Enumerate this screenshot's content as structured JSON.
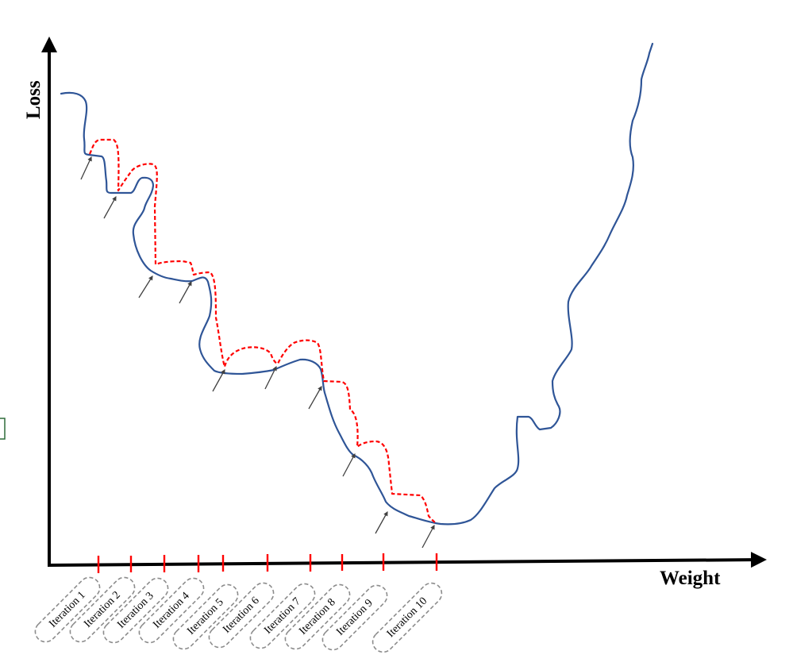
{
  "axes": {
    "y_label": "Loss",
    "x_label": "Weight"
  },
  "iterations": [
    "Iteration 1",
    "Iteration 2",
    "Iteration 3",
    "Iteration 4",
    "Iteration 5",
    "Iteration 6",
    "Iteration 7",
    "Iteration 8",
    "Iteration 9",
    "Iteration 10"
  ],
  "colors": {
    "loss_curve": "#2f5597",
    "update_path": "#ff0000",
    "tick": "#ff0000",
    "arrow": "#404040",
    "axis": "#000000",
    "iteration_box": "#8c8c8c"
  }
}
